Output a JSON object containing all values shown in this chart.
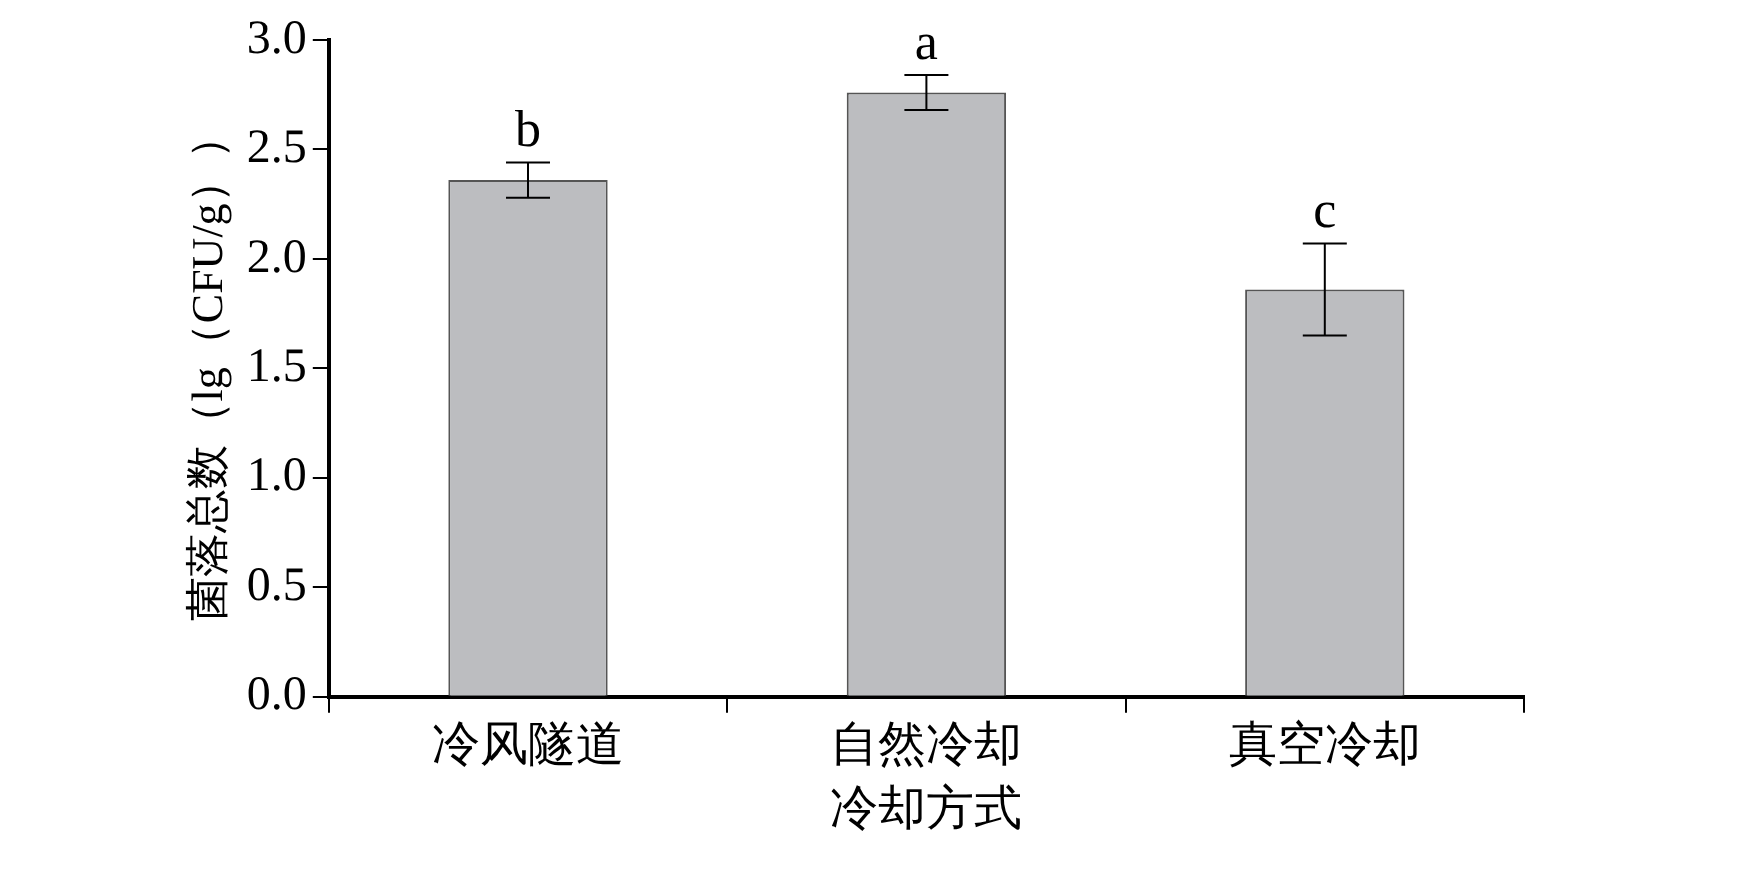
{
  "chart_data": {
    "type": "bar",
    "xlabel": "冷却方式",
    "ylabel": "菌落总数（lg（CFU/g））",
    "categories": [
      "冷风隧道",
      "自然冷却",
      "真空冷却"
    ],
    "values": [
      2.36,
      2.76,
      1.86
    ],
    "errors": [
      0.08,
      0.08,
      0.21
    ],
    "color": "#bcbdc0",
    "ylim": [
      0,
      3
    ],
    "yticks": [
      {
        "value": 0,
        "label": "0.0"
      },
      {
        "value": 0.5,
        "label": "0.5"
      },
      {
        "value": 1,
        "label": "1.0"
      },
      {
        "value": 1.5,
        "label": "1.5"
      },
      {
        "value": 2,
        "label": "2.0"
      },
      {
        "value": 2.5,
        "label": "2.5"
      },
      {
        "value": 3,
        "label": "3.0"
      }
    ],
    "annotations": [
      {
        "text": "b",
        "x": "冷风隧道",
        "y": 2.44
      },
      {
        "text": "a",
        "x": "自然冷却",
        "y": 2.84
      },
      {
        "text": "c",
        "x": "真空冷却",
        "y": 2.07
      }
    ],
    "grid": false,
    "legend": false
  }
}
